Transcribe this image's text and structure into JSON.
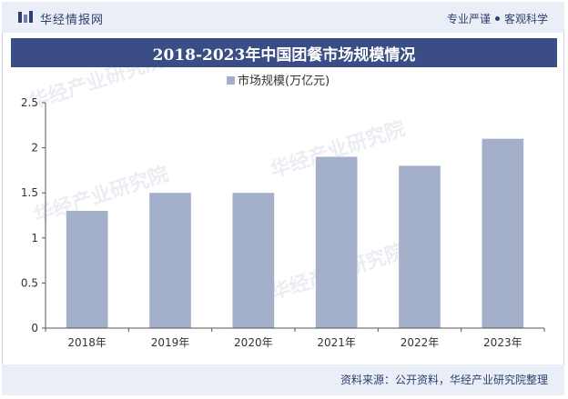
{
  "header": {
    "brand": "华经情报网",
    "tagline_left": "专业严谨",
    "tagline_right": "客观科学"
  },
  "title": "2018-2023年中国团餐市场规模情况",
  "footer": {
    "source": "资料来源：公开资料，华经产业研究院整理"
  },
  "watermark": "华经产业研究院",
  "colors": {
    "bar": "#a4b0c9",
    "title_bg": "#3a4d85",
    "band_bg": "#e9eef7",
    "text_dark": "#2e3f6e"
  },
  "chart_data": {
    "type": "bar",
    "categories": [
      "2018年",
      "2019年",
      "2020年",
      "2021年",
      "2022年",
      "2023年"
    ],
    "series": [
      {
        "name": "市场规模(万亿元)",
        "values": [
          1.3,
          1.5,
          1.5,
          1.9,
          1.8,
          2.1
        ]
      }
    ],
    "ylim": [
      0,
      2.5
    ],
    "yticks": [
      "0",
      "0.5",
      "1",
      "1.5",
      "2",
      "2.5"
    ],
    "ytick_values": [
      0,
      0.5,
      1,
      1.5,
      2,
      2.5
    ],
    "legend_position": "top-center",
    "grid": false
  }
}
